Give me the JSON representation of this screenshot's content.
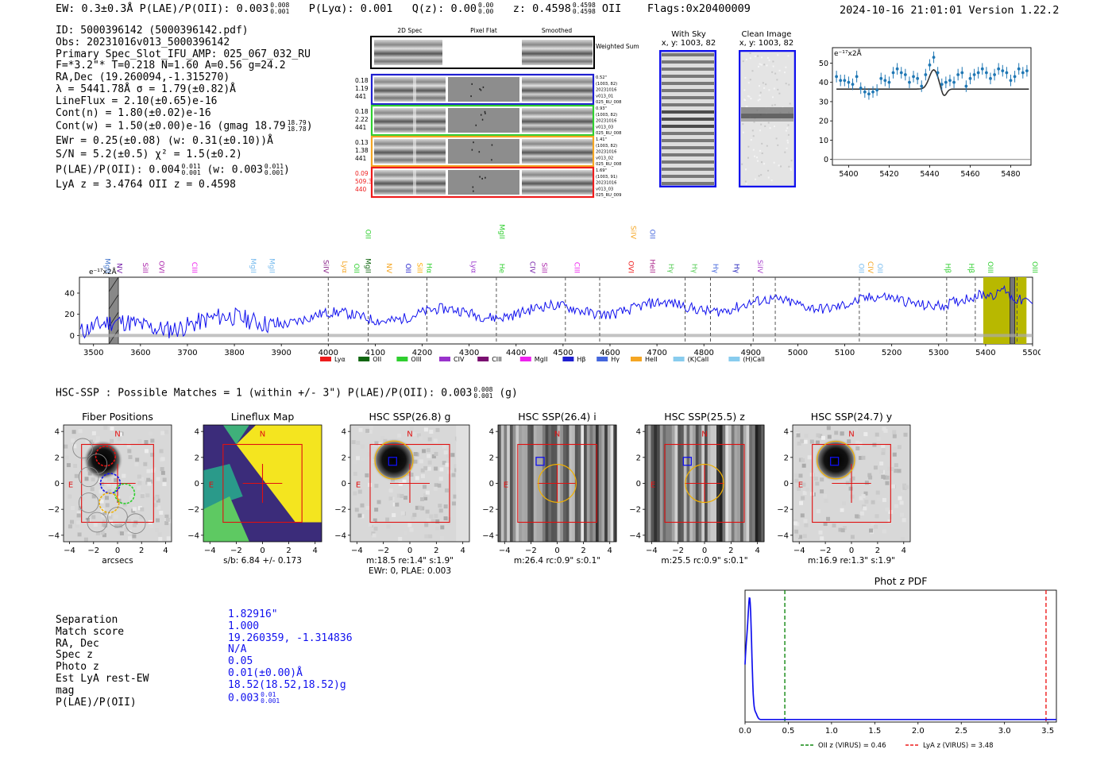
{
  "header": {
    "left": "EW: 0.3±0.3Å  P(LAE)/P(OII): 0.003",
    "plae_hi": "0.008",
    "plae_lo": "0.001",
    "plya": "P(Lyα): 0.001",
    "qz": "Q(z): 0.00",
    "qz_hi": "0.00",
    "qz_lo": "0.00",
    "z": "z: 0.4598",
    "z_hi": "0.4598",
    "z_lo": "0.4598",
    "z_line": "OII",
    "flags": "Flags:0x20400009",
    "right": "2024-10-16 21:01:01  Version 1.22.2"
  },
  "info": {
    "id": "ID: 5000396142 (5000396142.pdf)",
    "obs": "Obs: 20231016v013_5000396142",
    "primary": "Primary Spec_Slot_IFU_AMP: 025_067_032_RU",
    "fwhm": "F=*3.2\"*  T=0.218  N=1.60  A=0.56  g=24.2",
    "radec": "RA,Dec (19.260094,-1.315270)",
    "lambda": "λ = 5441.78Å  σ = 1.79(±0.82)Å",
    "lineflux": "LineFlux = 2.10(±0.65)e-16",
    "contn": "Cont(n) = 1.80(±0.02)e-16",
    "contw": "Cont(w) = 1.50(±0.00)e-16 (gmag 18.79",
    "contw_hi": "18.79",
    "contw_lo": "18.78",
    "ewr": "EWr = 0.25(±0.08) (w: 0.31(±0.10))Å",
    "sn": "S/N = 5.2(±0.5)  χ² = 1.5(±0.2)",
    "plae": "P(LAE)/P(OII): 0.004",
    "plae_hi": "0.011",
    "plae_lo": "0.001",
    "plae_w": "(w: 0.003",
    "plae_w_hi": "0.011",
    "plae_w_lo": "0.001",
    "lyaz": "LyA z = 3.4764  OII z = 0.4598"
  },
  "spec2d": {
    "col_titles": [
      "2D Spec",
      "Pixel Flat",
      "Smoothed"
    ],
    "weighted": "Weighted Sum",
    "rows": [
      {
        "left": [
          "0.18",
          "1.19",
          "441"
        ],
        "right": [
          "0.52\"",
          "(1003, 82)",
          "20231016",
          "v013_01",
          "025_RU_008"
        ],
        "color": "#1f1fd0",
        "left_color": "#000"
      },
      {
        "left": [
          "0.18",
          "2.22",
          "441"
        ],
        "right": [
          "0.93\"",
          "(1003, 82)",
          "20231016",
          "v013_03",
          "025_RU_008"
        ],
        "color": "#2fcf2f",
        "left_color": "#000"
      },
      {
        "left": [
          "0.13",
          "1.38",
          "441"
        ],
        "right": [
          "1.41\"",
          "(1003, 82)",
          "20231016",
          "v013_02",
          "025_RU_008"
        ],
        "color": "#f5a623",
        "left_color": "#000"
      },
      {
        "left": [
          "0.09",
          "509.3",
          "440"
        ],
        "right": [
          "1.69\"",
          "(1003, 91)",
          "20231016",
          "v013_03",
          "025_RU_009"
        ],
        "color": "#ee1c1c",
        "left_color": "#ee1c1c"
      }
    ]
  },
  "cutouts": {
    "with_sky": [
      "With Sky",
      "x, y: 1003, 82"
    ],
    "clean": [
      "Clean Image",
      "x, y: 1003, 82"
    ]
  },
  "zoom_chart": {
    "type": "scatter",
    "ylabel": "e⁻¹⁷x2Å",
    "xlim": [
      5392,
      5490
    ],
    "ylim": [
      -3,
      58
    ],
    "xticks": [
      5400,
      5420,
      5440,
      5460,
      5480
    ],
    "yticks": [
      0,
      10,
      20,
      30,
      40,
      50
    ],
    "continuum": 36.5,
    "peak_center": 5442,
    "peak_height": 10,
    "x": [
      5394,
      5396,
      5398,
      5400,
      5402,
      5404,
      5406,
      5408,
      5410,
      5412,
      5414,
      5416,
      5418,
      5420,
      5422,
      5424,
      5426,
      5428,
      5430,
      5432,
      5434,
      5436,
      5438,
      5440,
      5442,
      5444,
      5446,
      5448,
      5450,
      5452,
      5454,
      5456,
      5458,
      5460,
      5462,
      5464,
      5466,
      5468,
      5470,
      5472,
      5474,
      5476,
      5478,
      5480,
      5482,
      5484,
      5486,
      5488
    ],
    "y": [
      43,
      41,
      41,
      40,
      39,
      43,
      37,
      35,
      34,
      35,
      36,
      42,
      41,
      40,
      45,
      47,
      45,
      44,
      40,
      43,
      42,
      38,
      44,
      49,
      53,
      45,
      39,
      40,
      41,
      40,
      44,
      45,
      38,
      42,
      44,
      45,
      47,
      45,
      42,
      44,
      47,
      46,
      45,
      41,
      43,
      47,
      45,
      46
    ]
  },
  "full_spectrum": {
    "type": "line",
    "ylabel": "e⁻¹⁷x2Å",
    "xlim": [
      3470,
      5500
    ],
    "ylim": [
      -8,
      55
    ],
    "xticks": [
      3500,
      3600,
      3700,
      3800,
      3900,
      4000,
      4100,
      4200,
      4300,
      4400,
      4500,
      4600,
      4700,
      4800,
      4900,
      5000,
      5100,
      5200,
      5300,
      5400,
      5500
    ],
    "yticks": [
      0,
      20,
      40
    ],
    "dashed_lines": [
      4000,
      4085,
      4210,
      4358,
      4505,
      4578,
      4760,
      4814,
      4905,
      4952,
      5131,
      5317,
      5378,
      5467
    ],
    "line_labels": [
      {
        "t": "MgII",
        "x": 3520,
        "c": "#4477cc",
        "row": 1
      },
      {
        "t": "NV",
        "x": 3545,
        "c": "#7722aa",
        "row": 1
      },
      {
        "t": "SiII",
        "x": 3600,
        "c": "#aa22aa",
        "row": 1
      },
      {
        "t": "OVI",
        "x": 3635,
        "c": "#aa22aa",
        "row": 1
      },
      {
        "t": "CIII",
        "x": 3705,
        "c": "#ee22ee",
        "row": 1
      },
      {
        "t": "MgII",
        "x": 3830,
        "c": "#77bbee",
        "row": 1
      },
      {
        "t": "MgII",
        "x": 3870,
        "c": "#77bbee",
        "row": 1
      },
      {
        "t": "SiIV",
        "x": 3985,
        "c": "#882288",
        "row": 1
      },
      {
        "t": "Lyα",
        "x": 4025,
        "c": "#f5a623",
        "row": 1
      },
      {
        "t": "OII",
        "x": 4050,
        "c": "#2fcf2f",
        "row": 1
      },
      {
        "t": "MgII",
        "x": 4075,
        "c": "#116611",
        "row": 1
      },
      {
        "t": "NV",
        "x": 4120,
        "c": "#f5a623",
        "row": 1
      },
      {
        "t": "OII",
        "x": 4160,
        "c": "#2222cc",
        "row": 1
      },
      {
        "t": "SiII",
        "x": 4185,
        "c": "#ffaa00",
        "row": 1
      },
      {
        "t": "Hα",
        "x": 4205,
        "c": "#2fcf2f",
        "row": 1
      },
      {
        "t": "Lyα",
        "x": 4300,
        "c": "#9933cc",
        "row": 1
      },
      {
        "t": "He",
        "x": 4360,
        "c": "#2fcf2f",
        "row": 1
      },
      {
        "t": "CIV",
        "x": 4425,
        "c": "#7722aa",
        "row": 1
      },
      {
        "t": "SiII",
        "x": 4450,
        "c": "#aa22aa",
        "row": 1
      },
      {
        "t": "CIII",
        "x": 4520,
        "c": "#ee22ee",
        "row": 1
      },
      {
        "t": "OVI",
        "x": 4635,
        "c": "#ee1c1c",
        "row": 1
      },
      {
        "t": "HeII",
        "x": 4680,
        "c": "#aa2288",
        "row": 1
      },
      {
        "t": "Hγ",
        "x": 4720,
        "c": "#55cc55",
        "row": 1
      },
      {
        "t": "Hγ",
        "x": 4770,
        "c": "#55cc55",
        "row": 1
      },
      {
        "t": "Hγ",
        "x": 4815,
        "c": "#4466dd",
        "row": 1
      },
      {
        "t": "Hγ",
        "x": 4860,
        "c": "#2222bb",
        "row": 1
      },
      {
        "t": "SiIV",
        "x": 4910,
        "c": "#aa44cc",
        "row": 1
      },
      {
        "t": "OII",
        "x": 5125,
        "c": "#77bbee",
        "row": 1
      },
      {
        "t": "CIV",
        "x": 5145,
        "c": "#f5a623",
        "row": 1
      },
      {
        "t": "OII",
        "x": 5165,
        "c": "#77bbee",
        "row": 1
      },
      {
        "t": "Hβ",
        "x": 5310,
        "c": "#2fcf2f",
        "row": 1
      },
      {
        "t": "Hβ",
        "x": 5360,
        "c": "#2fcf2f",
        "row": 1
      },
      {
        "t": "OIII",
        "x": 5400,
        "c": "#2fcf2f",
        "row": 1
      },
      {
        "t": "OIII",
        "x": 5495,
        "c": "#2fcf2f",
        "row": 1
      },
      {
        "t": "OII",
        "x": 4075,
        "c": "#2fcf2f",
        "row": 2
      },
      {
        "t": "MgII",
        "x": 4360,
        "c": "#2fcf2f",
        "row": 2
      },
      {
        "t": "SiIV",
        "x": 4640,
        "c": "#f5a623",
        "row": 2
      },
      {
        "t": "OII",
        "x": 4680,
        "c": "#4466dd",
        "row": 2
      }
    ],
    "legend": [
      {
        "t": "Lyα",
        "c": "#ee1c1c"
      },
      {
        "t": "OII",
        "c": "#116611"
      },
      {
        "t": "OIII",
        "c": "#2fcf2f"
      },
      {
        "t": "CIV",
        "c": "#9933cc"
      },
      {
        "t": "CIII",
        "c": "#7a1070"
      },
      {
        "t": "MgII",
        "c": "#ee22ee"
      },
      {
        "t": "Hβ",
        "c": "#1f1fd0"
      },
      {
        "t": "Hγ",
        "c": "#4466dd"
      },
      {
        "t": "HeII",
        "c": "#f5a623"
      },
      {
        "t": "(K)CaII",
        "c": "#88ccee"
      },
      {
        "t": "(H)CaII",
        "c": "#88ccee"
      }
    ]
  },
  "hsc": {
    "title": "HSC-SSP : Possible Matches = 1 (within +/- 3\")  P(LAE)/P(OII): 0.003",
    "title_hi": "0.008",
    "title_lo": "0.001",
    "title_tail": "(g)",
    "panels": [
      {
        "title": "Fiber Positions",
        "cap1": "arcsecs",
        "cap2": ""
      },
      {
        "title": "Lineflux Map",
        "cap1": "s/b: 6.84 +/- 0.173",
        "cap2": ""
      },
      {
        "title": "HSC SSP(26.8) g",
        "cap1": "m:18.5  re:1.4\"  s:1.9\"",
        "cap2": "EWr: 0, PLAE: 0.003"
      },
      {
        "title": "HSC SSP(26.4) i",
        "cap1": "m:26.4 rc:0.9\"  s:0.1\"",
        "cap2": ""
      },
      {
        "title": "HSC SSP(25.5) z",
        "cap1": "m:25.5 rc:0.9\"  s:0.1\"",
        "cap2": ""
      },
      {
        "title": "HSC SSP(24.7) y",
        "cap1": "m:16.9  re:1.3\"  s:1.9\"",
        "cap2": ""
      }
    ],
    "ticks": [
      "−4",
      "−2",
      "0",
      "2",
      "4"
    ],
    "north": "N",
    "east": "E"
  },
  "match": {
    "labels": [
      "Separation",
      "Match score",
      "RA, Dec",
      "Spec z",
      "Photo z",
      "Est LyA rest-EW",
      "mag",
      "P(LAE)/P(OII)"
    ],
    "values": [
      "1.82916\"",
      "1.000",
      "19.260359, -1.314836",
      "N/A",
      "0.05",
      "0.01(±0.00)Å",
      "18.52(18.52,18.52)g",
      "0.003"
    ],
    "plae_hi": "0.01",
    "plae_lo": "0.001"
  },
  "photz_chart": {
    "type": "line",
    "title": "Phot z PDF",
    "xlim": [
      0,
      3.6
    ],
    "ylim": [
      0,
      1.05
    ],
    "xticks": [
      0.0,
      0.5,
      1.0,
      1.5,
      2.0,
      2.5,
      3.0,
      3.5
    ],
    "oii_z": 0.46,
    "lya_z": 3.48,
    "legend_oii": "OII z (VIRUS) = 0.46",
    "legend_lya": "LyA z (VIRUS) = 3.48"
  },
  "colors": {
    "spectrum": "#1010ee",
    "oii_line": "#118811",
    "lya_line": "#ee1c1c",
    "box_red": "#e01010",
    "aperture": "#f0b000",
    "blue_box": "#1010ee",
    "highlight": "#b8b800"
  }
}
